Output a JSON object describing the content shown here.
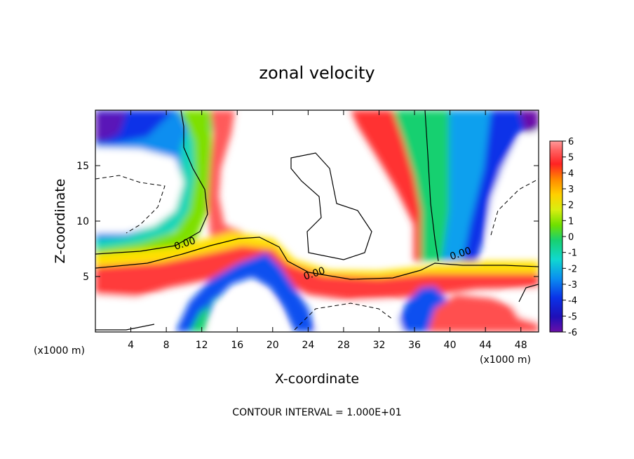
{
  "chart_data": {
    "type": "heatmap",
    "title": "zonal velocity",
    "xlabel": "X-coordinate",
    "ylabel": "Z-coordinate",
    "x_unit_label": "(x1000 m)",
    "x_unit_label_right": "(x1000 m)",
    "footnote": "CONTOUR INTERVAL = 1.000E+01",
    "xlim": [
      0,
      50
    ],
    "ylim": [
      0,
      20
    ],
    "x_ticks": [
      4,
      8,
      12,
      16,
      20,
      24,
      28,
      32,
      36,
      40,
      44,
      48
    ],
    "y_ticks": [
      5,
      10,
      15
    ],
    "colorbar": {
      "min": -6,
      "max": 6,
      "labels": [
        "6",
        "5",
        "4",
        "3",
        "2",
        "1",
        "0",
        "-1",
        "-2",
        "-3",
        "-4",
        "-5",
        "-6"
      ],
      "values": [
        6,
        5,
        4,
        3,
        2,
        1,
        0,
        -1,
        -2,
        -3,
        -4,
        -5,
        -6
      ]
    },
    "contour_labels": [
      {
        "text": "0.00",
        "x": 10.2,
        "z": 7.7
      },
      {
        "text": "0.00",
        "x": 24.8,
        "z": 5.0
      },
      {
        "text": "0.00",
        "x": 41.3,
        "z": 6.8
      }
    ],
    "grid": false,
    "legend": "colorbar right"
  }
}
